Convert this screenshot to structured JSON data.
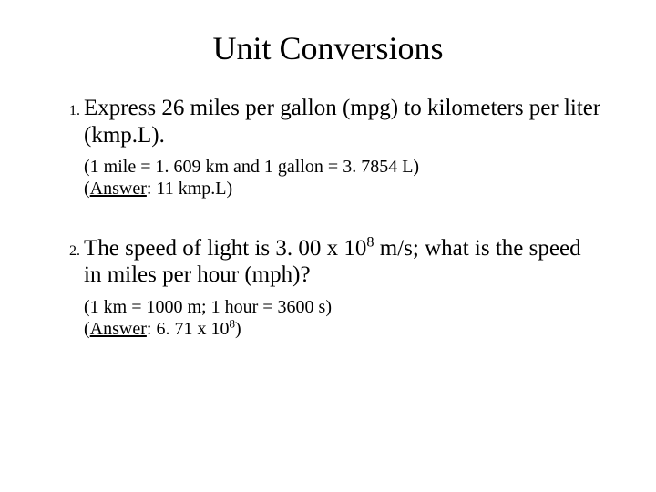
{
  "title": "Unit Conversions",
  "q1": {
    "number": "1.",
    "text": "Express 26 miles per gallon (mpg) to kilometers per liter (kmp.L).",
    "conv": "(1 mile = 1. 609 km and 1 gallon = 3. 7854 L)",
    "ans_label": "Answer",
    "ans_value": ": 11 kmp.L)"
  },
  "q2": {
    "number": "2.",
    "text_pre": "The speed of light is 3. 00 x 10",
    "exp": "8",
    "text_post": " m/s; what is the speed in miles per hour (mph)?",
    "conv": "(1 km = 1000 m; 1 hour = 3600 s)",
    "ans_label": "Answer",
    "ans_pre": ": 6. 71 x 10",
    "ans_exp": "8",
    "ans_post": ")"
  }
}
